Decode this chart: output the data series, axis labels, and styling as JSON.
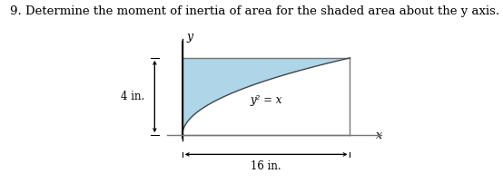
{
  "title": "9. Determine the moment of inertia of area for the shaded area about the y axis.",
  "title_fontsize": 9.5,
  "x_max": 16,
  "y_max": 4,
  "shade_color": "#aed6e8",
  "shade_alpha": 1.0,
  "curve_color": "#444444",
  "line_color": "#888888",
  "label_4in": "4 in.",
  "label_16in": "16 in.",
  "label_curve": "y² = x",
  "label_x": "x",
  "label_y": "y",
  "fig_width": 5.54,
  "fig_height": 2.13,
  "background_color": "#ffffff"
}
